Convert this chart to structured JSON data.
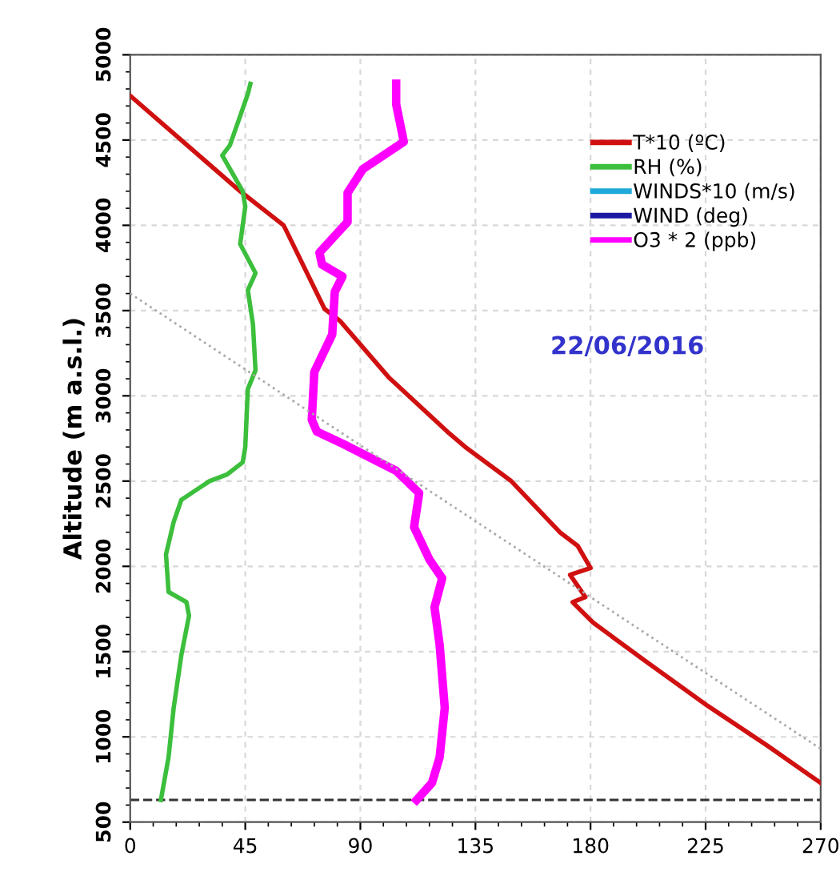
{
  "chart_data": {
    "type": "line",
    "ylabel": "Altitude (m a.s.l.)",
    "xlim": [
      0,
      270
    ],
    "xticks": [
      0,
      45,
      90,
      135,
      180,
      225,
      270
    ],
    "ylim": [
      500,
      5000
    ],
    "yticks": [
      500,
      1000,
      1500,
      2000,
      2500,
      3000,
      3500,
      4000,
      4500,
      5000
    ],
    "grid": true,
    "legend": "top right",
    "line_style": "solid",
    "marker": "none",
    "annotations": [
      "22/06/2016"
    ],
    "ref_lines": [
      {
        "axis": "y",
        "value": 630,
        "color": "#333333",
        "line_style": "dashed"
      }
    ],
    "series": [
      {
        "name": "T*10 (ºC)",
        "color": "#d01010",
        "x": [
          0,
          43,
          60,
          76,
          82,
          101,
          124,
          131,
          149,
          168,
          175,
          180,
          172,
          178,
          173,
          181,
          201,
          226,
          249,
          270
        ],
        "values": [
          4760,
          4200,
          4000,
          3510,
          3440,
          3110,
          2790,
          2700,
          2500,
          2200,
          2120,
          1990,
          1950,
          1820,
          1790,
          1670,
          1450,
          1180,
          950,
          730
        ]
      },
      {
        "name": "RH (%)",
        "color": "#3cbf3c",
        "x": [
          47,
          46,
          39,
          36,
          44,
          45,
          43,
          49,
          46,
          48,
          49,
          46,
          45,
          44,
          38,
          31,
          20,
          17,
          14,
          15,
          22,
          23,
          20,
          17,
          15,
          12
        ],
        "values": [
          4830,
          4770,
          4470,
          4410,
          4200,
          4110,
          3890,
          3720,
          3620,
          3420,
          3150,
          3040,
          2700,
          2610,
          2540,
          2500,
          2390,
          2260,
          2070,
          1850,
          1790,
          1710,
          1480,
          1170,
          880,
          630
        ]
      },
      {
        "name": "WINDS*10 (m/s)",
        "color": "#1fa9d8"
      },
      {
        "name": "WIND (deg)",
        "color": "#1a1aa0"
      },
      {
        "name": "O3 * 2 (ppb)",
        "color": "#ff00ff",
        "x": [
          104,
          104,
          107,
          91,
          85,
          85,
          74,
          75,
          83,
          80,
          79,
          72,
          71,
          73,
          83,
          104,
          113,
          111,
          117,
          122,
          119,
          121,
          123,
          121,
          118,
          112
        ],
        "values": [
          4830,
          4710,
          4490,
          4330,
          4190,
          4020,
          3840,
          3770,
          3700,
          3610,
          3360,
          3140,
          2860,
          2790,
          2720,
          2560,
          2430,
          2230,
          2040,
          1930,
          1760,
          1540,
          1170,
          880,
          730,
          630
        ]
      },
      {
        "color": "#aaaaaa",
        "line_style": "dotted",
        "x": [
          0,
          270
        ],
        "values": [
          3600,
          930
        ]
      }
    ]
  }
}
